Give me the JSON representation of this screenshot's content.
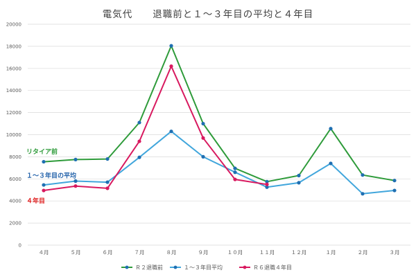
{
  "chart_data": {
    "type": "line",
    "title": "電気代　　退職前と１～３年目の平均と４年目",
    "categories": [
      "４月",
      "５月",
      "６月",
      "７月",
      "８月",
      "９月",
      "１０月",
      "１１月",
      "１２月",
      "１月",
      "２月",
      "３月"
    ],
    "ylim": [
      0,
      20000
    ],
    "yticks": [
      0,
      2000,
      4000,
      6000,
      8000,
      10000,
      12000,
      14000,
      16000,
      18000,
      20000
    ],
    "grid": true,
    "legend_position": "bottom",
    "series": [
      {
        "name": "Ｒ２退職前",
        "color": "#2e9b3a",
        "marker_color": "#1f6fb2",
        "values": [
          7550,
          7750,
          7800,
          11100,
          18050,
          11000,
          6950,
          5750,
          6300,
          10550,
          null,
          null
        ]
      },
      {
        "name": "１～３年目平均",
        "color": "#41a6dc",
        "marker_color": "#1f6fb2",
        "values": [
          5450,
          5800,
          5700,
          7950,
          10300,
          8000,
          6600,
          5250,
          5650,
          7400,
          4650,
          4950
        ]
      },
      {
        "name": "Ｒ６退職４年目",
        "color": "#d8195f",
        "marker_color": "#d8195f",
        "values": [
          4950,
          5350,
          5150,
          9400,
          16200,
          9700,
          5950,
          5500,
          null,
          null,
          null,
          null
        ]
      }
    ],
    "green_tail": {
      "from_index": 9,
      "values": [
        10550,
        6350,
        5850
      ]
    },
    "annotations": [
      {
        "text": "リタイア前",
        "color": "#2e9b3a",
        "anchor_value": 8450
      },
      {
        "text": "１～３年目の平均",
        "color": "#1f5fa8",
        "anchor_value": 6300
      },
      {
        "text": "４年目",
        "color": "#e01f1f",
        "anchor_value": 4000
      }
    ]
  }
}
